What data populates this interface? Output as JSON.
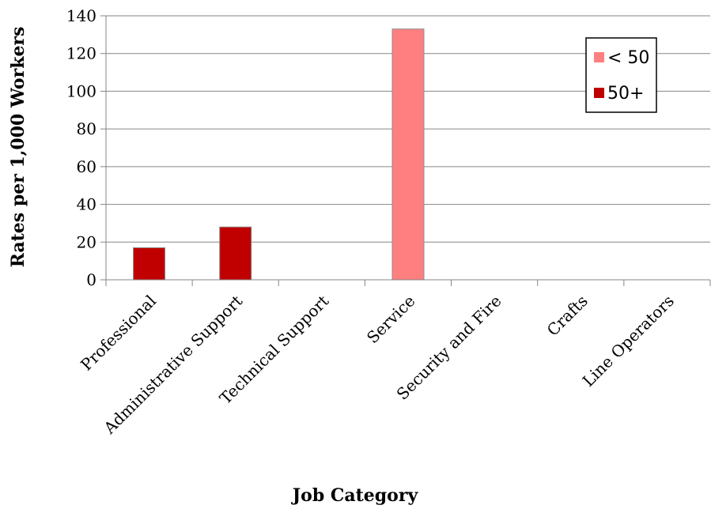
{
  "chart_data": {
    "type": "bar",
    "title": "",
    "xlabel": "Job Category",
    "ylabel": "Rates per 1,000 Workers",
    "ylim": [
      0,
      140
    ],
    "yticks": [
      0,
      20,
      40,
      60,
      80,
      100,
      120,
      140
    ],
    "grid": true,
    "legend_position": "top-right",
    "categories": [
      "Professional",
      "Administrative Support",
      "Technical Support",
      "Service",
      "Security and Fire",
      "Crafts",
      "Line Operators"
    ],
    "series": [
      {
        "name": "< 50",
        "color": "#ff7f80",
        "values": [
          null,
          null,
          null,
          133,
          null,
          null,
          null
        ]
      },
      {
        "name": "50+",
        "color": "#c00000",
        "values": [
          17,
          28,
          null,
          null,
          null,
          null,
          null
        ]
      }
    ]
  }
}
